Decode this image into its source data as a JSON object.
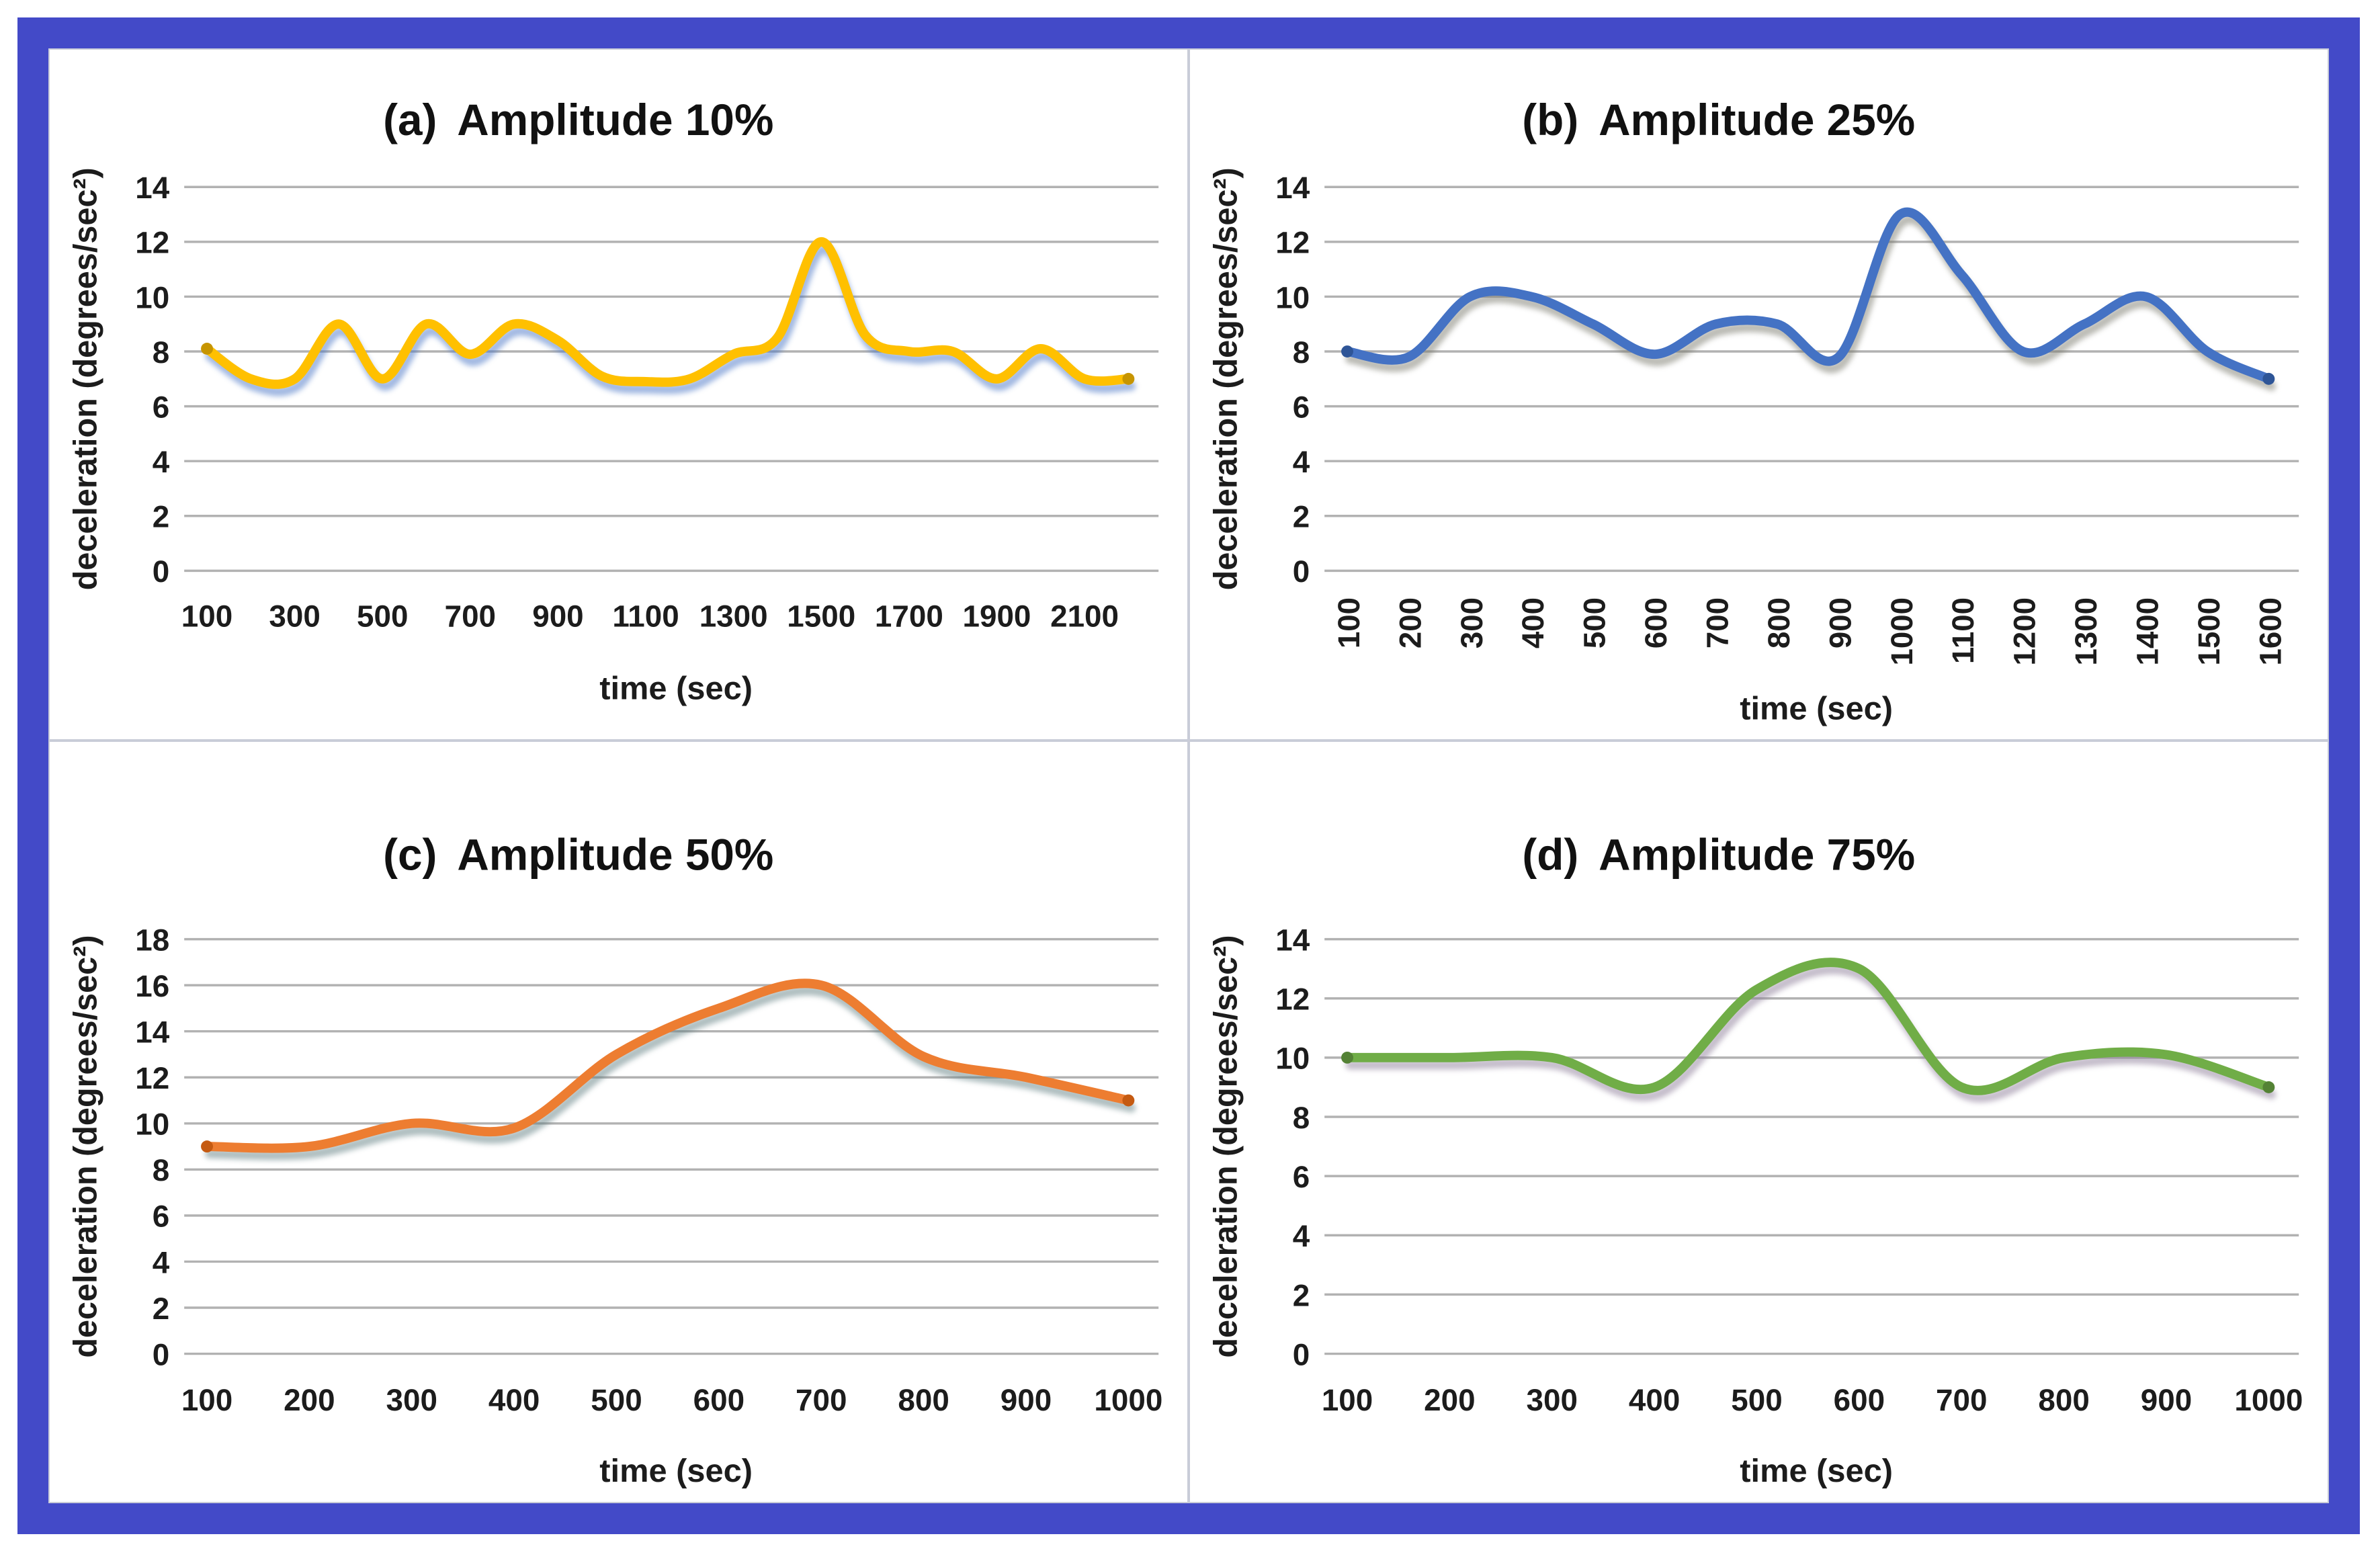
{
  "figure": {
    "frame_color": "#434ac8",
    "panel_border_color": "#c9ccd8",
    "gridline_color": "#b2b2b2",
    "text_color": "#1c1c1c"
  },
  "chart_data": [
    {
      "id": "a",
      "type": "line",
      "tag": "(a)",
      "title": "Amplitude 10%",
      "xlabel": "time (sec)",
      "ylabel": "deceleration (degrees/sec²)",
      "line_color": "#FFC000",
      "endcap_color": "#c79500",
      "shadow_color": "#4472C4",
      "x_start": 100,
      "x_step": 100,
      "x": [
        100,
        200,
        300,
        400,
        500,
        600,
        700,
        800,
        900,
        1000,
        1100,
        1200,
        1300,
        1400,
        1500,
        1600,
        1700,
        1800,
        1900,
        2000,
        2100,
        2200
      ],
      "values": [
        8.1,
        7.0,
        7.0,
        9.0,
        7.0,
        9.0,
        7.9,
        9.0,
        8.4,
        7.1,
        6.9,
        7.0,
        7.9,
        8.5,
        12.0,
        8.6,
        8.0,
        8.0,
        7.0,
        8.1,
        7.0,
        7.0
      ],
      "ylim": [
        0,
        14
      ],
      "ytick_step": 2,
      "yticks": [
        "0",
        "2",
        "4",
        "6",
        "8",
        "10",
        "12",
        "14"
      ],
      "xtick_labels": [
        "100",
        "300",
        "500",
        "700",
        "900",
        "1100",
        "1300",
        "1500",
        "1700",
        "1900",
        "2100"
      ],
      "xticks_rotated": false,
      "grid": true,
      "legend": "none"
    },
    {
      "id": "b",
      "type": "line",
      "tag": "(b)",
      "title": "Amplitude 25%",
      "xlabel": "time (sec)",
      "ylabel": "deceleration (degrees/sec²)",
      "line_color": "#4472C4",
      "endcap_color": "#2e5597",
      "shadow_color": "#77776a",
      "x_start": 100,
      "x_step": 100,
      "x": [
        100,
        200,
        300,
        400,
        500,
        600,
        700,
        800,
        900,
        1000,
        1100,
        1200,
        1300,
        1400,
        1500,
        1600
      ],
      "values": [
        8.0,
        7.8,
        10.0,
        10.0,
        9.0,
        7.9,
        9.0,
        9.0,
        7.8,
        13.0,
        10.8,
        8.0,
        9.0,
        10.0,
        8.0,
        7.0
      ],
      "ylim": [
        0,
        14
      ],
      "ytick_step": 2,
      "yticks": [
        "0",
        "2",
        "4",
        "6",
        "8",
        "10",
        "12",
        "14"
      ],
      "xtick_labels": [
        "100",
        "200",
        "300",
        "400",
        "500",
        "600",
        "700",
        "800",
        "900",
        "1000",
        "1100",
        "1200",
        "1300",
        "1400",
        "1500",
        "1600"
      ],
      "xticks_rotated": true,
      "grid": true,
      "legend": "none"
    },
    {
      "id": "c",
      "type": "line",
      "tag": "(c)",
      "title": "Amplitude 50%",
      "xlabel": "time (sec)",
      "ylabel": "deceleration (degrees/sec²)",
      "line_color": "#ED7D31",
      "endcap_color": "#c55a11",
      "shadow_color": "#5e7d80",
      "x_start": 100,
      "x_step": 100,
      "x": [
        100,
        200,
        300,
        400,
        500,
        600,
        700,
        800,
        900,
        1000
      ],
      "values": [
        9.0,
        9.0,
        10.0,
        9.8,
        13.0,
        15.0,
        16.0,
        12.9,
        12.0,
        11.0
      ],
      "ylim": [
        0,
        18
      ],
      "ytick_step": 2,
      "yticks": [
        "0",
        "2",
        "4",
        "6",
        "8",
        "10",
        "12",
        "14",
        "16",
        "18"
      ],
      "xtick_labels": [
        "100",
        "200",
        "300",
        "400",
        "500",
        "600",
        "700",
        "800",
        "900",
        "1000"
      ],
      "xticks_rotated": false,
      "grid": true,
      "legend": "none"
    },
    {
      "id": "d",
      "type": "line",
      "tag": "(d)",
      "title": "Amplitude 75%",
      "xlabel": "time (sec)",
      "ylabel": "deceleration (degrees/sec²)",
      "line_color": "#70AD47",
      "endcap_color": "#548235",
      "shadow_color": "#8a7a96",
      "x_start": 100,
      "x_step": 100,
      "x": [
        100,
        200,
        300,
        400,
        500,
        600,
        700,
        800,
        900,
        1000
      ],
      "values": [
        10.0,
        10.0,
        10.0,
        9.0,
        12.3,
        13.0,
        9.0,
        10.0,
        10.1,
        9.0
      ],
      "ylim": [
        0,
        14
      ],
      "ytick_step": 2,
      "yticks": [
        "0",
        "2",
        "4",
        "6",
        "8",
        "10",
        "12",
        "14"
      ],
      "xtick_labels": [
        "100",
        "200",
        "300",
        "400",
        "500",
        "600",
        "700",
        "800",
        "900",
        "1000"
      ],
      "xticks_rotated": false,
      "grid": true,
      "legend": "none"
    }
  ]
}
